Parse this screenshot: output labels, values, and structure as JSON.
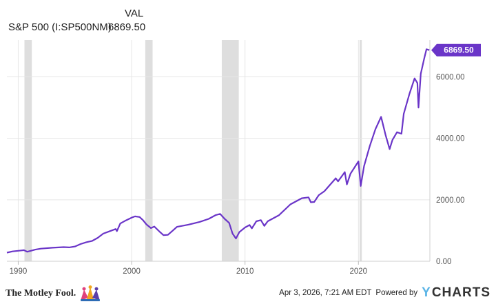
{
  "legend": {
    "column_header": "VAL",
    "series_name": "S&P 500 (I:SP500NM)",
    "series_value": "6869.50"
  },
  "footer": {
    "brand": "The Motley Fool.",
    "timestamp": "Apr 3, 2026, 7:21 AM EDT",
    "powered_by": "Powered by",
    "ycharts_y": "Y",
    "ycharts_rest": "CHARTS"
  },
  "colors": {
    "line": "#6a35c8",
    "recession": "#dedede",
    "grid": "#e6e6e6",
    "axis_text": "#555555",
    "badge_bg": "#6a35c8",
    "badge_text": "#ffffff"
  },
  "chart_data": {
    "type": "line",
    "title": "",
    "xlabel": "",
    "ylabel": "",
    "xlim": [
      1989.0,
      2026.3
    ],
    "ylim": [
      0,
      7200
    ],
    "x_ticks": [
      {
        "value": 1990,
        "label": "1990"
      },
      {
        "value": 2000,
        "label": "2000"
      },
      {
        "value": 2010,
        "label": "2010"
      },
      {
        "value": 2020,
        "label": "2020"
      }
    ],
    "y_ticks": [
      {
        "value": 0,
        "label": "0.00"
      },
      {
        "value": 2000,
        "label": "2000.00"
      },
      {
        "value": 4000,
        "label": "4000.00"
      },
      {
        "value": 6000,
        "label": "6000.00"
      }
    ],
    "recessions": [
      [
        1990.55,
        1991.2
      ],
      [
        2001.2,
        2001.85
      ],
      [
        2007.95,
        2009.45
      ],
      [
        2020.1,
        2020.3
      ]
    ],
    "last_value_label": "6869.50",
    "series": [
      {
        "name": "S&P 500 (I:SP500NM)",
        "points": [
          [
            1989.0,
            280
          ],
          [
            1989.5,
            320
          ],
          [
            1990.0,
            340
          ],
          [
            1990.5,
            360
          ],
          [
            1990.8,
            310
          ],
          [
            1991.0,
            330
          ],
          [
            1991.5,
            380
          ],
          [
            1992.0,
            410
          ],
          [
            1993.0,
            440
          ],
          [
            1994.0,
            460
          ],
          [
            1994.5,
            450
          ],
          [
            1995.0,
            480
          ],
          [
            1995.5,
            560
          ],
          [
            1996.0,
            620
          ],
          [
            1996.5,
            660
          ],
          [
            1997.0,
            760
          ],
          [
            1997.5,
            900
          ],
          [
            1998.0,
            970
          ],
          [
            1998.6,
            1050
          ],
          [
            1998.7,
            980
          ],
          [
            1999.0,
            1230
          ],
          [
            1999.5,
            1330
          ],
          [
            2000.0,
            1420
          ],
          [
            2000.3,
            1460
          ],
          [
            2000.7,
            1440
          ],
          [
            2001.0,
            1340
          ],
          [
            2001.3,
            1200
          ],
          [
            2001.7,
            1080
          ],
          [
            2002.0,
            1130
          ],
          [
            2002.5,
            950
          ],
          [
            2002.8,
            850
          ],
          [
            2003.2,
            860
          ],
          [
            2003.6,
            990
          ],
          [
            2004.0,
            1120
          ],
          [
            2005.0,
            1190
          ],
          [
            2006.0,
            1280
          ],
          [
            2006.8,
            1380
          ],
          [
            2007.4,
            1500
          ],
          [
            2007.8,
            1540
          ],
          [
            2008.2,
            1380
          ],
          [
            2008.6,
            1250
          ],
          [
            2008.9,
            900
          ],
          [
            2009.2,
            740
          ],
          [
            2009.5,
            950
          ],
          [
            2010.0,
            1100
          ],
          [
            2010.4,
            1180
          ],
          [
            2010.6,
            1070
          ],
          [
            2011.0,
            1300
          ],
          [
            2011.4,
            1340
          ],
          [
            2011.7,
            1150
          ],
          [
            2012.0,
            1300
          ],
          [
            2013.0,
            1500
          ],
          [
            2014.0,
            1850
          ],
          [
            2015.0,
            2050
          ],
          [
            2015.6,
            2080
          ],
          [
            2015.8,
            1920
          ],
          [
            2016.1,
            1930
          ],
          [
            2016.5,
            2150
          ],
          [
            2017.0,
            2280
          ],
          [
            2018.0,
            2700
          ],
          [
            2018.2,
            2600
          ],
          [
            2018.8,
            2900
          ],
          [
            2018.98,
            2500
          ],
          [
            2019.3,
            2850
          ],
          [
            2020.0,
            3250
          ],
          [
            2020.2,
            2450
          ],
          [
            2020.5,
            3100
          ],
          [
            2021.0,
            3750
          ],
          [
            2021.5,
            4300
          ],
          [
            2022.0,
            4700
          ],
          [
            2022.4,
            4100
          ],
          [
            2022.75,
            3650
          ],
          [
            2023.0,
            3950
          ],
          [
            2023.4,
            4200
          ],
          [
            2023.8,
            4150
          ],
          [
            2024.0,
            4800
          ],
          [
            2024.5,
            5450
          ],
          [
            2024.95,
            5950
          ],
          [
            2025.2,
            5800
          ],
          [
            2025.3,
            5000
          ],
          [
            2025.5,
            6100
          ],
          [
            2025.8,
            6600
          ],
          [
            2026.0,
            6900
          ],
          [
            2026.25,
            6869.5
          ]
        ]
      }
    ]
  }
}
